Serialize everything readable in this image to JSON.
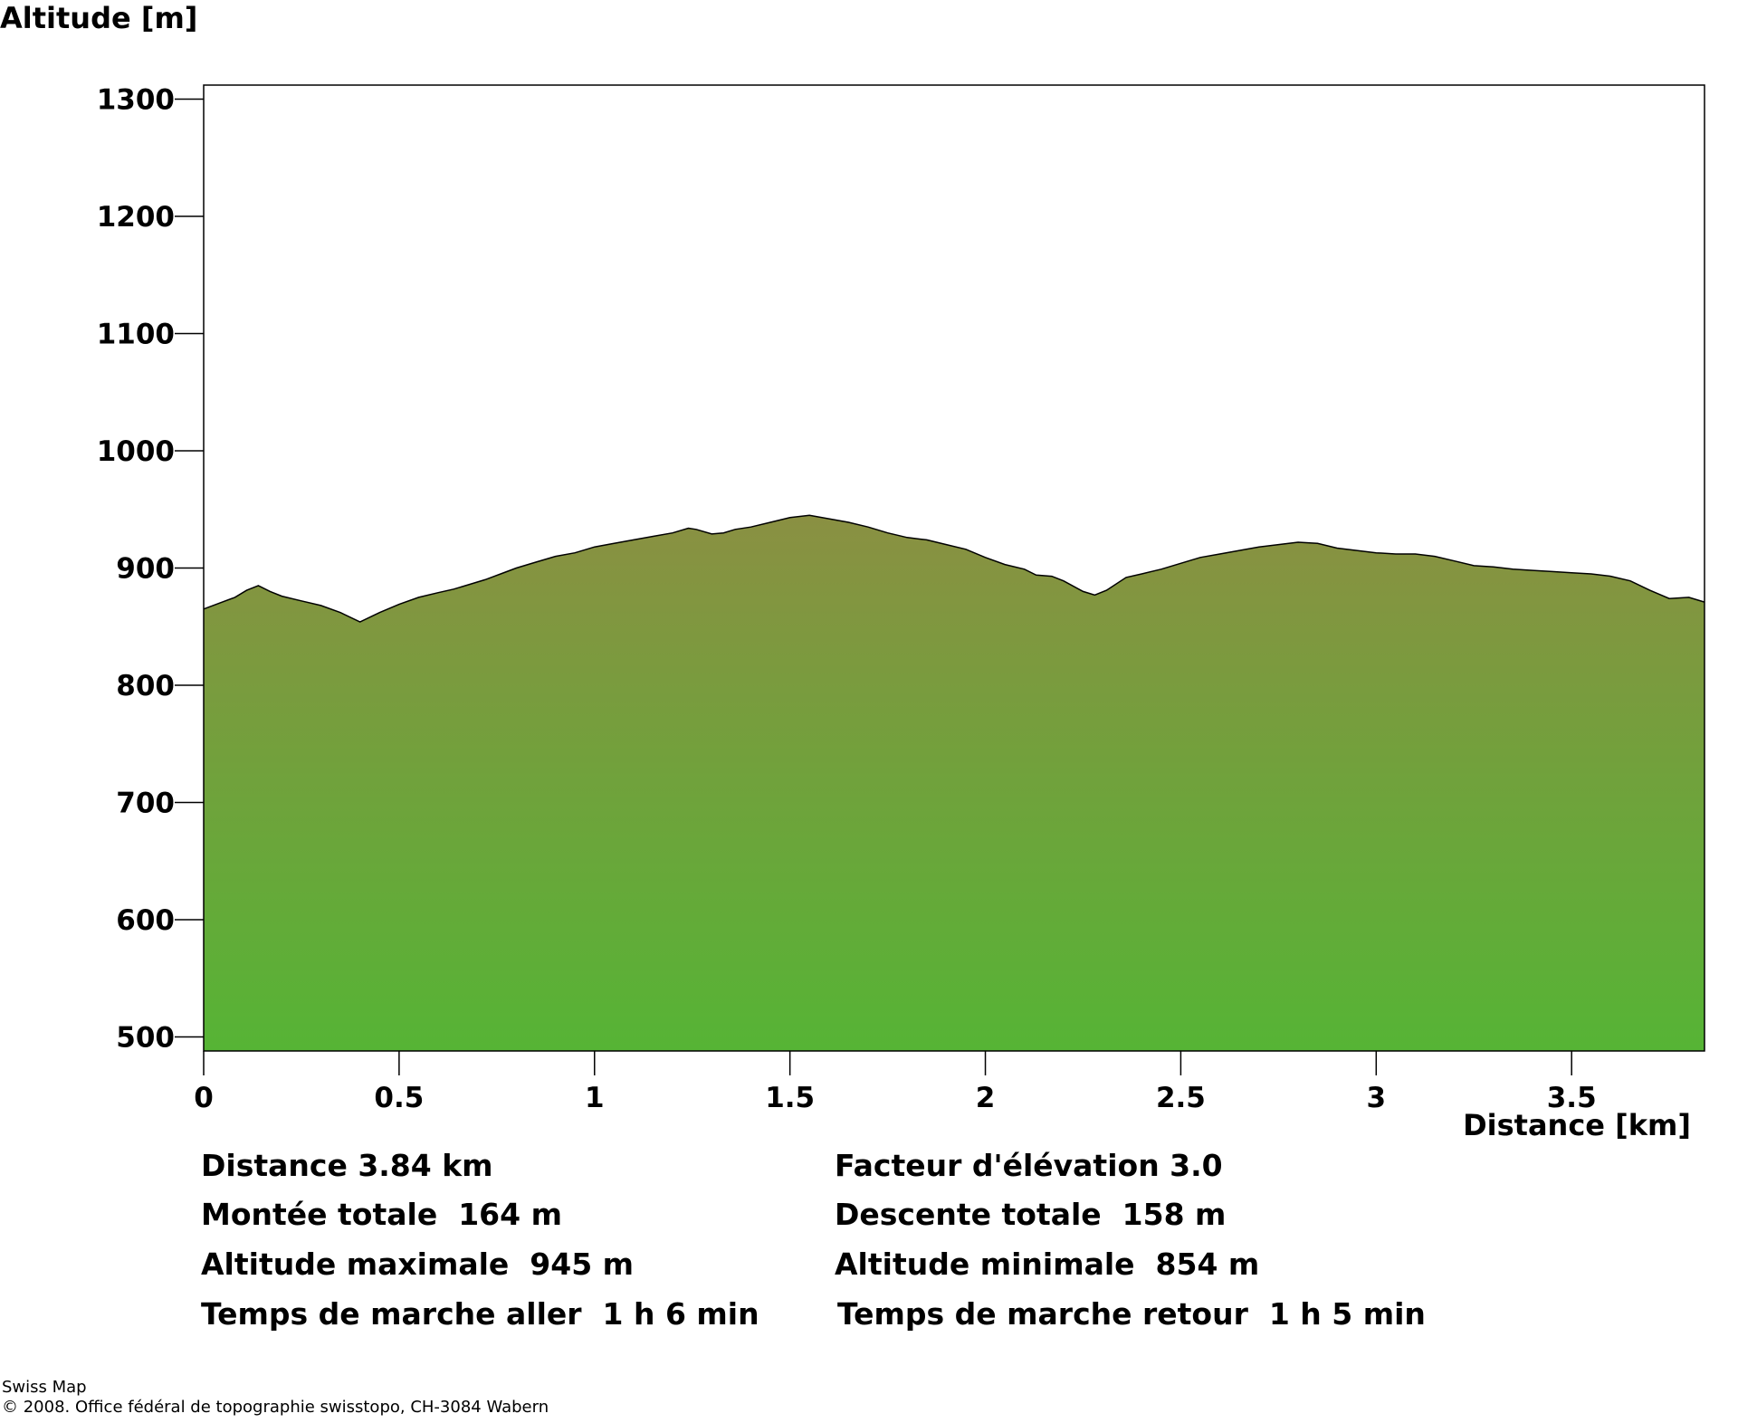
{
  "chart_data": {
    "type": "area",
    "ylabel": "Altitude [m]",
    "xlabel": "Distance [km]",
    "xlim": [
      0,
      3.84
    ],
    "ylim": [
      488,
      1312
    ],
    "xticks": [
      0,
      0.5,
      1,
      1.5,
      2,
      2.5,
      3,
      3.5
    ],
    "xtick_labels": [
      "0",
      "0.5",
      "1",
      "1.5",
      "2",
      "2.5",
      "3",
      "3.5"
    ],
    "yticks": [
      500,
      600,
      700,
      800,
      900,
      1000,
      1100,
      1200,
      1300
    ],
    "ytick_labels": [
      "500",
      "600",
      "700",
      "800",
      "900",
      "1000",
      "1100",
      "1200",
      "1300"
    ],
    "grid": false,
    "fill_colors": {
      "top": "#8a9042",
      "bottom": "#56b435"
    },
    "series": [
      {
        "x": [
          0,
          0.04,
          0.08,
          0.11,
          0.14,
          0.17,
          0.2,
          0.25,
          0.3,
          0.35,
          0.4,
          0.45,
          0.5,
          0.55,
          0.6,
          0.64,
          0.68,
          0.72,
          0.76,
          0.8,
          0.85,
          0.9,
          0.95,
          1.0,
          1.05,
          1.1,
          1.15,
          1.2,
          1.24,
          1.26,
          1.3,
          1.33,
          1.36,
          1.4,
          1.45,
          1.5,
          1.55,
          1.6,
          1.65,
          1.7,
          1.75,
          1.8,
          1.85,
          1.9,
          1.95,
          2.0,
          2.05,
          2.1,
          2.13,
          2.17,
          2.2,
          2.25,
          2.28,
          2.31,
          2.36,
          2.4,
          2.45,
          2.5,
          2.55,
          2.6,
          2.65,
          2.7,
          2.75,
          2.8,
          2.85,
          2.9,
          2.95,
          3.0,
          3.05,
          3.1,
          3.15,
          3.2,
          3.25,
          3.3,
          3.35,
          3.4,
          3.45,
          3.5,
          3.55,
          3.6,
          3.65,
          3.7,
          3.75,
          3.8,
          3.84
        ],
        "y": [
          865,
          870,
          875,
          881,
          885,
          880,
          876,
          872,
          868,
          862,
          854,
          862,
          869,
          875,
          879,
          882,
          886,
          890,
          895,
          900,
          905,
          910,
          913,
          918,
          921,
          924,
          927,
          930,
          934,
          933,
          929,
          930,
          933,
          935,
          939,
          943,
          945,
          942,
          939,
          935,
          930,
          926,
          924,
          920,
          916,
          909,
          903,
          899,
          894,
          893,
          889,
          880,
          877,
          881,
          892,
          895,
          899,
          904,
          909,
          912,
          915,
          918,
          920,
          922,
          921,
          917,
          915,
          913,
          912,
          912,
          910,
          906,
          902,
          901,
          899,
          898,
          897,
          896,
          895,
          893,
          889,
          881,
          874,
          875,
          871
        ]
      }
    ]
  },
  "stats": {
    "distance": "Distance 3.84 km",
    "elevation_factor": "Facteur d'élévation 3.0",
    "total_ascent": "Montée totale  164 m",
    "total_descent": "Descente totale  158 m",
    "max_altitude": "Altitude maximale  945 m",
    "min_altitude": "Altitude minimale  854 m",
    "walk_time_out": "Temps de marche aller  1 h 6 min",
    "walk_time_back": "Temps de marche retour  1 h 5 min"
  },
  "footer": {
    "line1": "Swiss Map",
    "line2": "© 2008. Office fédéral de topographie swisstopo, CH-3084 Wabern"
  }
}
